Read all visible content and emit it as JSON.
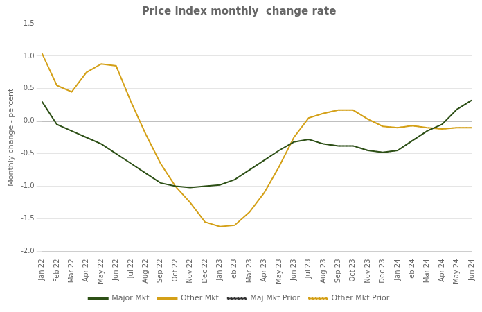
{
  "chart_data": {
    "type": "line",
    "title": "Price index monthly  change rate",
    "y_label": "Monthly change - percent",
    "categories": [
      "Jan 22",
      "Feb 22",
      "Mar 22",
      "Apr 22",
      "May 22",
      "Jun 22",
      "Jul 22",
      "Aug 22",
      "Sep 22",
      "Oct 22",
      "Nov 22",
      "Dec 22",
      "Jan 23",
      "Feb 23",
      "Mar 23",
      "Apr 23",
      "May 23",
      "Jun 23",
      "Jul 23",
      "Aug 23",
      "Sep 23",
      "Oct 23",
      "Nov 23",
      "Dec 23",
      "Jan 24",
      "Feb 24",
      "Mar 24",
      "Apr 24",
      "May 24",
      "Jun 24"
    ],
    "series": [
      {
        "name": "Major Mkt",
        "color": "#2d5016",
        "line_style": "solid",
        "values": [
          0.3,
          -0.05,
          -0.15,
          -0.25,
          -0.35,
          -0.5,
          -0.65,
          -0.8,
          -0.95,
          -1.0,
          -1.02,
          -1.0,
          -0.98,
          -0.9,
          -0.75,
          -0.6,
          -0.45,
          -0.32,
          -0.28,
          -0.35,
          -0.38,
          -0.38,
          -0.45,
          -0.48,
          -0.45,
          -0.3,
          -0.15,
          -0.05,
          0.18,
          0.32
        ]
      },
      {
        "name": "Other Mkt",
        "color": "#d4a017",
        "line_style": "solid",
        "values": [
          1.04,
          0.55,
          0.45,
          0.75,
          0.88,
          0.85,
          0.3,
          -0.2,
          -0.65,
          -1.0,
          -1.25,
          -1.55,
          -1.62,
          -1.6,
          -1.4,
          -1.1,
          -0.7,
          -0.25,
          0.05,
          0.12,
          0.17,
          0.17,
          0.03,
          -0.08,
          -0.1,
          -0.07,
          -0.1,
          -0.12,
          -0.1,
          -0.1
        ]
      },
      {
        "name": "Maj Mkt Prior",
        "color": "#333333",
        "line_style": "dotted",
        "values": [
          null,
          null,
          null,
          null,
          null,
          null,
          null,
          null,
          null,
          null,
          null,
          null,
          null,
          null,
          null,
          null,
          null,
          null,
          -0.28,
          -0.35,
          -0.38,
          -0.38,
          -0.45,
          -0.48,
          -0.45,
          -0.3,
          -0.15,
          -0.05,
          0.18,
          0.32
        ]
      },
      {
        "name": "Other Mkt Prior",
        "color": "#d4a017",
        "line_style": "dotted",
        "values": [
          null,
          null,
          null,
          null,
          null,
          null,
          null,
          null,
          null,
          null,
          null,
          null,
          null,
          null,
          null,
          null,
          null,
          null,
          0.05,
          0.12,
          0.17,
          0.17,
          0.03,
          -0.08,
          -0.1,
          -0.07,
          -0.1,
          -0.12,
          -0.1,
          -0.1
        ]
      }
    ],
    "ylim": [
      -2.0,
      1.5
    ],
    "yticks": [
      {
        "value": -2.0,
        "label": "-2.0"
      },
      -1.5,
      {
        "value": -1.0,
        "label": "-1.0"
      },
      -0.5,
      {
        "value": 0.0,
        "label": "0.0"
      },
      0.5,
      {
        "value": 1.0,
        "label": "1.0"
      },
      1.5
    ],
    "grid": "y",
    "legend": "bottom"
  }
}
